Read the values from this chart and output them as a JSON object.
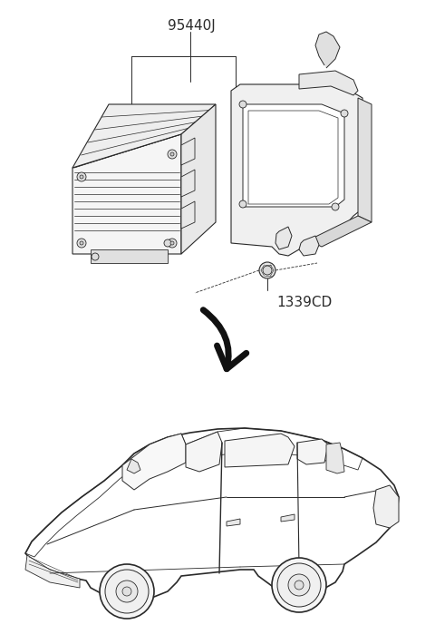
{
  "bg_color": "#ffffff",
  "line_color": "#2a2a2a",
  "label_95440J": "95440J",
  "label_1339CD": "1339CD",
  "fig_width": 4.8,
  "fig_height": 7.1,
  "dpi": 100
}
